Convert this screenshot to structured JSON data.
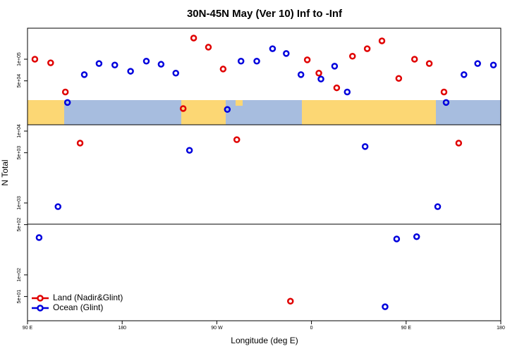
{
  "chart_data": {
    "type": "scatter",
    "title": "30N-45N May (Ver 10)   Inf to -Inf",
    "xlabel": "Longitude (deg E)",
    "ylabel": "N Total",
    "xlim": [
      90,
      540
    ],
    "xticks": [
      {
        "value": 90,
        "label": "90 E"
      },
      180,
      {
        "value": 270,
        "label": "90 W"
      },
      {
        "value": 360,
        "label": "0"
      },
      {
        "value": 450,
        "label": "90 E"
      },
      {
        "value": 540,
        "label": "180"
      }
    ],
    "ylim": [
      23,
      270000
    ],
    "log_y": true,
    "yticks": [
      {
        "value": 100000,
        "label": "1e+05"
      },
      {
        "value": 50000,
        "label": "5e+04"
      },
      {
        "value": 10000,
        "label": "1e+04"
      },
      {
        "value": 5000,
        "label": "5e+03"
      },
      {
        "value": 1000,
        "label": "1e+03"
      },
      {
        "value": 500,
        "label": "5e+02"
      },
      {
        "value": 100,
        "label": "1e+02"
      },
      {
        "value": 50,
        "label": "5e+01"
      }
    ],
    "legend": "bottom-left",
    "series": [
      {
        "name": "Land (Nadir&Glint)",
        "color": "#e00000",
        "x": [
          97,
          112,
          126,
          140,
          238,
          248,
          262,
          276,
          289,
          340,
          356,
          367,
          384,
          399,
          413,
          427,
          443,
          458,
          472,
          486,
          500
        ],
        "values": [
          100000,
          89000,
          35000,
          6800,
          20600,
          197000,
          147000,
          73000,
          7600,
          43,
          98000,
          64000,
          40000,
          110000,
          140000,
          180000,
          54000,
          100000,
          87000,
          35000,
          6800
        ]
      },
      {
        "name": "Ocean (Glint)",
        "color": "#0000dd",
        "x": [
          101,
          119,
          128,
          144,
          158,
          173,
          188,
          203,
          217,
          231,
          244,
          280,
          293,
          308,
          323,
          336,
          350,
          369,
          382,
          394,
          411,
          430,
          441,
          460,
          480,
          488,
          505,
          518,
          533
        ],
        "values": [
          330,
          890,
          25000,
          61000,
          87000,
          83000,
          68000,
          94000,
          85000,
          64000,
          5400,
          20000,
          94000,
          94000,
          140000,
          120000,
          61000,
          53000,
          80000,
          35000,
          6100,
          36,
          316,
          340,
          890,
          25000,
          61000,
          87000,
          83000
        ]
      }
    ]
  }
}
